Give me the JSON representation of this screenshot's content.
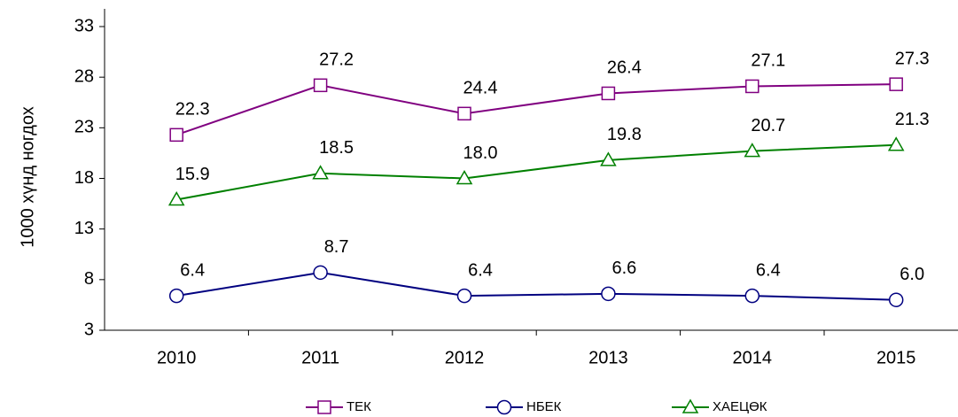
{
  "chart_data": {
    "type": "line",
    "y_label": "1000 хүнд ногдох",
    "categories": [
      "2010",
      "2011",
      "2012",
      "2013",
      "2014",
      "2015"
    ],
    "series": [
      {
        "name": "ТЕК",
        "color": "#800080",
        "marker": "square",
        "values": [
          22.3,
          27.2,
          24.4,
          26.4,
          27.1,
          27.3
        ],
        "value_labels": [
          "22.3",
          "27.2",
          "24.4",
          "26.4",
          "27.1",
          "27.3"
        ]
      },
      {
        "name": "НБЕК",
        "color": "#000080",
        "marker": "circle",
        "values": [
          6.4,
          8.7,
          6.4,
          6.6,
          6.4,
          6.0
        ],
        "value_labels": [
          "6.4",
          "8.7",
          "6.4",
          "6.6",
          "6.4",
          "6.0"
        ]
      },
      {
        "name": "ХАЕЦӨК",
        "color": "#008000",
        "marker": "triangle",
        "values": [
          15.9,
          18.5,
          18.0,
          19.8,
          20.7,
          21.3
        ],
        "value_labels": [
          "15.9",
          "18.5",
          "18.0",
          "19.8",
          "20.7",
          "21.3"
        ]
      }
    ],
    "ylim": [
      3,
      33
    ],
    "yticks": [
      3,
      8,
      13,
      18,
      23,
      28,
      33
    ],
    "grid": false,
    "legend": "bottom"
  }
}
